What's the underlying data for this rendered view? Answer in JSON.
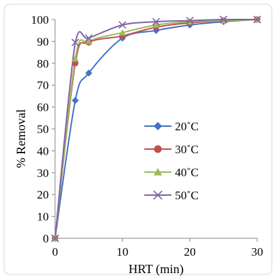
{
  "chart_data": {
    "type": "line",
    "title": "",
    "xlabel": "HRT (min)",
    "ylabel": "% Removal",
    "xlim": [
      0,
      30
    ],
    "ylim": [
      0,
      100
    ],
    "xticks": [
      0,
      10,
      20,
      30
    ],
    "yticks": [
      0,
      10,
      20,
      30,
      40,
      50,
      60,
      70,
      80,
      90,
      100
    ],
    "grid": false,
    "legend_position": "center-right",
    "x": [
      0,
      3,
      5,
      10,
      15,
      20,
      25,
      30
    ],
    "series": [
      {
        "name": "20˚C",
        "color": "#4472C4",
        "marker": "diamond",
        "values": [
          0,
          63,
          75.5,
          91.5,
          95,
          97.5,
          99,
          100
        ]
      },
      {
        "name": "30˚C",
        "color": "#C0504D",
        "marker": "circle",
        "values": [
          0,
          80,
          89.5,
          92.5,
          96.5,
          98.5,
          99.5,
          100
        ]
      },
      {
        "name": "40˚C",
        "color": "#9BBB59",
        "marker": "triangle",
        "values": [
          0,
          82,
          90,
          94,
          97.5,
          99,
          99.5,
          100
        ]
      },
      {
        "name": "50˚C",
        "color": "#8064A2",
        "marker": "x",
        "values": [
          0,
          89.5,
          91.5,
          97.5,
          99,
          99.5,
          100,
          100
        ]
      }
    ]
  }
}
